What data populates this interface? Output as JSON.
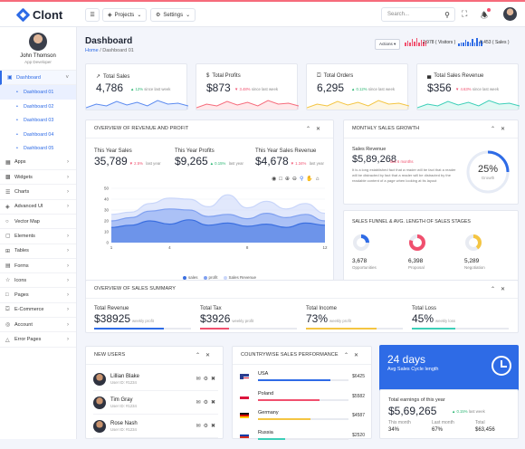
{
  "app": {
    "name": "Clont"
  },
  "topbar": {
    "projects_label": "Projects",
    "settings_label": "Settings",
    "search_placeholder": "Search..."
  },
  "profile": {
    "name": "John Thomson",
    "role": "App Developer"
  },
  "sidebar": {
    "items": [
      {
        "label": "Dashboard",
        "icon": "monitor-icon"
      },
      {
        "label": "Dashboard 01",
        "sub": true
      },
      {
        "label": "Dashboard 02",
        "sub": true
      },
      {
        "label": "Dashboard 03",
        "sub": true
      },
      {
        "label": "Dashboard 04",
        "sub": true
      },
      {
        "label": "Dashboard 05",
        "sub": true
      },
      {
        "label": "Apps",
        "icon": "grid-icon"
      },
      {
        "label": "Widgets",
        "icon": "widget-icon"
      },
      {
        "label": "Charts",
        "icon": "chart-icon"
      },
      {
        "label": "Advanced UI",
        "icon": "layers-icon"
      },
      {
        "label": "Vector Map",
        "icon": "map-icon"
      },
      {
        "label": "Elements",
        "icon": "cube-icon"
      },
      {
        "label": "Tables",
        "icon": "table-icon"
      },
      {
        "label": "Forms",
        "icon": "form-icon"
      },
      {
        "label": "Icons",
        "icon": "star-icon"
      },
      {
        "label": "Pages",
        "icon": "page-icon"
      },
      {
        "label": "E-Commerce",
        "icon": "cart-icon"
      },
      {
        "label": "Account",
        "icon": "user-icon"
      },
      {
        "label": "Error Pages",
        "icon": "alert-icon"
      }
    ]
  },
  "header": {
    "title": "Dashboard",
    "crumb_home": "Home",
    "crumb_sep": "/",
    "crumb_current": "Dashboard 01",
    "actions_label": "Actions",
    "visitors": "2,978",
    "visitors_label": "( Visitors )",
    "downloads": "6,453",
    "downloads_label": "( Sales )"
  },
  "stats": [
    {
      "label": "Total Sales",
      "value": "4,786",
      "change": "▲ 12%",
      "note": "since last week",
      "up": true,
      "icon": "trend-icon",
      "color": "#5b8af0"
    },
    {
      "label": "Total Profits",
      "value": "$873",
      "change": "▼ 3.48%",
      "note": "since last week",
      "up": false,
      "icon": "dollar-icon",
      "color": "#f66b7b"
    },
    {
      "label": "Total Orders",
      "value": "6,295",
      "change": "▲ 0.12%",
      "note": "since last week",
      "up": true,
      "icon": "cart-icon",
      "color": "#f4c542"
    },
    {
      "label": "Total Sales Revenue",
      "value": "$356",
      "change": "▼ 4.63%",
      "note": "since last week",
      "up": false,
      "icon": "graph-icon",
      "color": "#3ccfb8"
    }
  ],
  "overview": {
    "title": "OVERVIEW OF REVENUE AND PROFIT",
    "kpis": [
      {
        "label": "This Year Sales",
        "value": "35,789",
        "change": "▼ 2.5%",
        "note": "last year",
        "up": false
      },
      {
        "label": "This Year Profits",
        "value": "$9,265",
        "change": "▲ 0.15%",
        "note": "last year",
        "up": true
      },
      {
        "label": "This Year Sales Revenue",
        "value": "$4,678",
        "change": "▼ 1.34%",
        "note": "last year",
        "up": false
      }
    ]
  },
  "chart_data": {
    "type": "area",
    "x": [
      1,
      2,
      3,
      4,
      5,
      6,
      7,
      8,
      9,
      10,
      11,
      12
    ],
    "xticks": [
      "1",
      "4",
      "8",
      "12"
    ],
    "yticks": [
      "0",
      "10",
      "20",
      "30",
      "40",
      "50"
    ],
    "ylim": [
      0,
      50
    ],
    "series": [
      {
        "name": "sales",
        "color": "#3b6fe0",
        "values": [
          14,
          16,
          20,
          17,
          21,
          16,
          18,
          15,
          17,
          14,
          18,
          16
        ]
      },
      {
        "name": "profit",
        "color": "#7fa0f0",
        "values": [
          20,
          23,
          29,
          31,
          30,
          24,
          26,
          22,
          27,
          23,
          26,
          20
        ]
      },
      {
        "name": "Sales Revenue",
        "color": "#c9d6fa",
        "values": [
          26,
          28,
          36,
          41,
          40,
          33,
          44,
          32,
          38,
          31,
          36,
          27
        ]
      }
    ]
  },
  "monthly": {
    "title": "MONTHLY SALES GROWTH",
    "label": "Sales Revenue",
    "value": "$5,89,268",
    "change": "last 6 months",
    "text": "It is a long established fact that a reader will be fact that a reader will be distracted by fact that a reader will be distracted by the readable content of a page when looking at its layout",
    "percent": "25%",
    "percent_value": 25,
    "sub": "Growth"
  },
  "funnel": {
    "title": "SALES FUNNEL & AVG. LENGTH OF SALES STAGES",
    "items": [
      {
        "value": "3,678",
        "label": "Opportunities",
        "pct": 0.25,
        "color": "#2e6be6"
      },
      {
        "value": "6,398",
        "label": "Proposal",
        "pct": 0.8,
        "color": "#f0506e"
      },
      {
        "value": "5,289",
        "label": "Negotiation",
        "pct": 0.4,
        "color": "#f4c542"
      }
    ]
  },
  "summary": {
    "title": "OVERVIEW OF SALES SUMMARY",
    "items": [
      {
        "label": "Total Revenue",
        "value": "$38925",
        "note": "weekly profit",
        "pct": 0.72,
        "color": "#2e6be6"
      },
      {
        "label": "Total Tax",
        "value": "$3926",
        "note": "weekly profit",
        "pct": 0.3,
        "color": "#f0506e"
      },
      {
        "label": "Total Income",
        "value": "73%",
        "note": "weekly profit",
        "pct": 0.73,
        "color": "#f4c542"
      },
      {
        "label": "Total Loss",
        "value": "45%",
        "note": "weekly loss",
        "pct": 0.45,
        "color": "#3ccfb8"
      }
    ]
  },
  "users": {
    "title": "NEW USERS",
    "items": [
      {
        "name": "Lillian Blake",
        "id": "User ID: #1234"
      },
      {
        "name": "Tim Gray",
        "id": "User ID: #1234"
      },
      {
        "name": "Rose Nash",
        "id": "User ID: #1234"
      }
    ]
  },
  "countries": {
    "title": "COUNTRYWISE SALES PERFORMANCE",
    "items": [
      {
        "name": "USA",
        "value": "$6425",
        "pct": 0.8,
        "color": "#2e6be6"
      },
      {
        "name": "Poland",
        "value": "$5582",
        "pct": 0.68,
        "color": "#f0506e"
      },
      {
        "name": "Germany",
        "value": "$4587",
        "pct": 0.58,
        "color": "#f4c542"
      },
      {
        "name": "Russia",
        "value": "$2520",
        "pct": 0.3,
        "color": "#3ccfb8"
      }
    ]
  },
  "cycle": {
    "days": "24 days",
    "label": "Avg Sales Cycle length"
  },
  "earnings": {
    "label": "Total earnings of this year",
    "value": "$5,69,265",
    "change": "▲ 0.15%",
    "note": "last week",
    "cols": [
      {
        "label": "This month",
        "value": "34%"
      },
      {
        "label": "Last month",
        "value": "67%"
      },
      {
        "label": "Total",
        "value": "$63,456"
      }
    ]
  }
}
